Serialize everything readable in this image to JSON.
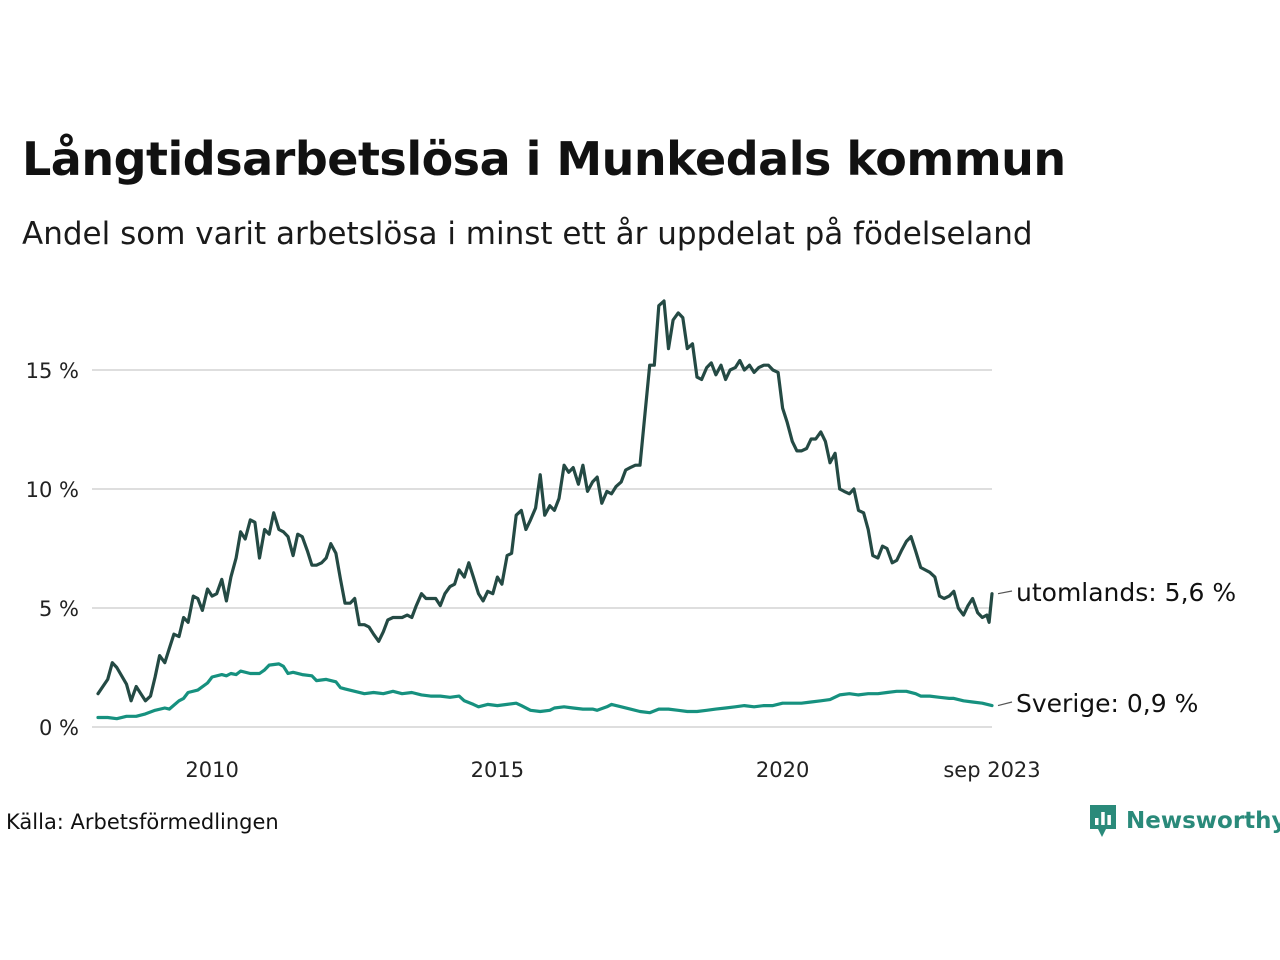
{
  "title": "Långtidsarbetslösa i Munkedals kommun",
  "subtitle": "Andel som varit arbetslösa i minst ett år uppdelat på födelseland",
  "source": "Källa: Arbetsförmedlingen",
  "brand": "Newsworthy",
  "colors": {
    "utomlands": "#244a44",
    "sverige": "#16917f",
    "grid": "#dedede",
    "brand": "#2a8a7a"
  },
  "chart_data": {
    "type": "line",
    "title": "Långtidsarbetslösa i Munkedals kommun",
    "xlabel": "",
    "ylabel": "",
    "ylim": [
      0,
      18
    ],
    "xlim": [
      2008.0,
      2023.67
    ],
    "y_ticks": [
      {
        "value": 0,
        "label": "0 %"
      },
      {
        "value": 5,
        "label": "5 %"
      },
      {
        "value": 10,
        "label": "10 %"
      },
      {
        "value": 15,
        "label": "15 %"
      }
    ],
    "x_ticks": [
      {
        "value": 2010,
        "label": "2010"
      },
      {
        "value": 2015,
        "label": "2015"
      },
      {
        "value": 2020,
        "label": "2020"
      },
      {
        "value": 2023.67,
        "label": "sep 2023"
      }
    ],
    "series": [
      {
        "name": "utomlands",
        "end_label": "utomlands: 5,6 %",
        "color_key": "utomlands",
        "points": [
          [
            2008.0,
            1.4
          ],
          [
            2008.17,
            2.0
          ],
          [
            2008.25,
            2.7
          ],
          [
            2008.33,
            2.5
          ],
          [
            2008.5,
            1.8
          ],
          [
            2008.58,
            1.1
          ],
          [
            2008.67,
            1.7
          ],
          [
            2008.75,
            1.4
          ],
          [
            2008.83,
            1.1
          ],
          [
            2008.92,
            1.3
          ],
          [
            2009.0,
            2.1
          ],
          [
            2009.08,
            3.0
          ],
          [
            2009.17,
            2.7
          ],
          [
            2009.25,
            3.3
          ],
          [
            2009.33,
            3.9
          ],
          [
            2009.42,
            3.8
          ],
          [
            2009.5,
            4.6
          ],
          [
            2009.58,
            4.4
          ],
          [
            2009.67,
            5.5
          ],
          [
            2009.75,
            5.4
          ],
          [
            2009.83,
            4.9
          ],
          [
            2009.92,
            5.8
          ],
          [
            2010.0,
            5.5
          ],
          [
            2010.08,
            5.6
          ],
          [
            2010.17,
            6.2
          ],
          [
            2010.25,
            5.3
          ],
          [
            2010.33,
            6.3
          ],
          [
            2010.42,
            7.1
          ],
          [
            2010.5,
            8.2
          ],
          [
            2010.58,
            7.9
          ],
          [
            2010.67,
            8.7
          ],
          [
            2010.75,
            8.6
          ],
          [
            2010.83,
            7.1
          ],
          [
            2010.92,
            8.3
          ],
          [
            2011.0,
            8.1
          ],
          [
            2011.08,
            9.0
          ],
          [
            2011.17,
            8.3
          ],
          [
            2011.25,
            8.2
          ],
          [
            2011.33,
            8.0
          ],
          [
            2011.42,
            7.2
          ],
          [
            2011.5,
            8.1
          ],
          [
            2011.58,
            8.0
          ],
          [
            2011.67,
            7.4
          ],
          [
            2011.75,
            6.8
          ],
          [
            2011.83,
            6.8
          ],
          [
            2011.92,
            6.9
          ],
          [
            2012.0,
            7.1
          ],
          [
            2012.08,
            7.7
          ],
          [
            2012.17,
            7.3
          ],
          [
            2012.25,
            6.2
          ],
          [
            2012.33,
            5.2
          ],
          [
            2012.42,
            5.2
          ],
          [
            2012.5,
            5.4
          ],
          [
            2012.58,
            4.3
          ],
          [
            2012.67,
            4.3
          ],
          [
            2012.75,
            4.2
          ],
          [
            2012.83,
            3.9
          ],
          [
            2012.92,
            3.6
          ],
          [
            2013.0,
            4.0
          ],
          [
            2013.08,
            4.5
          ],
          [
            2013.17,
            4.6
          ],
          [
            2013.25,
            4.6
          ],
          [
            2013.33,
            4.6
          ],
          [
            2013.42,
            4.7
          ],
          [
            2013.5,
            4.6
          ],
          [
            2013.58,
            5.1
          ],
          [
            2013.67,
            5.6
          ],
          [
            2013.75,
            5.4
          ],
          [
            2013.83,
            5.4
          ],
          [
            2013.92,
            5.4
          ],
          [
            2014.0,
            5.1
          ],
          [
            2014.08,
            5.6
          ],
          [
            2014.17,
            5.9
          ],
          [
            2014.25,
            6.0
          ],
          [
            2014.33,
            6.6
          ],
          [
            2014.42,
            6.3
          ],
          [
            2014.5,
            6.9
          ],
          [
            2014.58,
            6.3
          ],
          [
            2014.67,
            5.6
          ],
          [
            2014.75,
            5.3
          ],
          [
            2014.83,
            5.7
          ],
          [
            2014.92,
            5.6
          ],
          [
            2015.0,
            6.3
          ],
          [
            2015.08,
            6.0
          ],
          [
            2015.17,
            7.2
          ],
          [
            2015.25,
            7.3
          ],
          [
            2015.33,
            8.9
          ],
          [
            2015.42,
            9.1
          ],
          [
            2015.5,
            8.3
          ],
          [
            2015.58,
            8.7
          ],
          [
            2015.67,
            9.2
          ],
          [
            2015.75,
            10.6
          ],
          [
            2015.83,
            8.9
          ],
          [
            2015.92,
            9.3
          ],
          [
            2016.0,
            9.1
          ],
          [
            2016.08,
            9.6
          ],
          [
            2016.17,
            11.0
          ],
          [
            2016.25,
            10.7
          ],
          [
            2016.33,
            10.9
          ],
          [
            2016.42,
            10.2
          ],
          [
            2016.5,
            11.0
          ],
          [
            2016.58,
            9.9
          ],
          [
            2016.67,
            10.3
          ],
          [
            2016.75,
            10.5
          ],
          [
            2016.83,
            9.4
          ],
          [
            2016.92,
            9.9
          ],
          [
            2017.0,
            9.8
          ],
          [
            2017.08,
            10.1
          ],
          [
            2017.17,
            10.3
          ],
          [
            2017.25,
            10.8
          ],
          [
            2017.33,
            10.9
          ],
          [
            2017.42,
            11.0
          ],
          [
            2017.5,
            11.0
          ],
          [
            2017.58,
            13.0
          ],
          [
            2017.67,
            15.2
          ],
          [
            2017.75,
            15.2
          ],
          [
            2017.83,
            17.7
          ],
          [
            2017.92,
            17.9
          ],
          [
            2018.0,
            15.9
          ],
          [
            2018.08,
            17.1
          ],
          [
            2018.17,
            17.4
          ],
          [
            2018.25,
            17.2
          ],
          [
            2018.33,
            15.9
          ],
          [
            2018.42,
            16.1
          ],
          [
            2018.5,
            14.7
          ],
          [
            2018.58,
            14.6
          ],
          [
            2018.67,
            15.1
          ],
          [
            2018.75,
            15.3
          ],
          [
            2018.83,
            14.8
          ],
          [
            2018.92,
            15.2
          ],
          [
            2019.0,
            14.6
          ],
          [
            2019.08,
            15.0
          ],
          [
            2019.17,
            15.1
          ],
          [
            2019.25,
            15.4
          ],
          [
            2019.33,
            15.0
          ],
          [
            2019.42,
            15.2
          ],
          [
            2019.5,
            14.9
          ],
          [
            2019.58,
            15.1
          ],
          [
            2019.67,
            15.2
          ],
          [
            2019.75,
            15.2
          ],
          [
            2019.83,
            15.0
          ],
          [
            2019.92,
            14.9
          ],
          [
            2020.0,
            13.4
          ],
          [
            2020.08,
            12.8
          ],
          [
            2020.17,
            12.0
          ],
          [
            2020.25,
            11.6
          ],
          [
            2020.33,
            11.6
          ],
          [
            2020.42,
            11.7
          ],
          [
            2020.5,
            12.1
          ],
          [
            2020.58,
            12.1
          ],
          [
            2020.67,
            12.4
          ],
          [
            2020.75,
            12.0
          ],
          [
            2020.83,
            11.1
          ],
          [
            2020.92,
            11.5
          ],
          [
            2021.0,
            10.0
          ],
          [
            2021.08,
            9.9
          ],
          [
            2021.17,
            9.8
          ],
          [
            2021.25,
            10.0
          ],
          [
            2021.33,
            9.1
          ],
          [
            2021.42,
            9.0
          ],
          [
            2021.5,
            8.3
          ],
          [
            2021.58,
            7.2
          ],
          [
            2021.67,
            7.1
          ],
          [
            2021.75,
            7.6
          ],
          [
            2021.83,
            7.5
          ],
          [
            2021.92,
            6.9
          ],
          [
            2022.0,
            7.0
          ],
          [
            2022.08,
            7.4
          ],
          [
            2022.17,
            7.8
          ],
          [
            2022.25,
            8.0
          ],
          [
            2022.33,
            7.4
          ],
          [
            2022.42,
            6.7
          ],
          [
            2022.5,
            6.6
          ],
          [
            2022.58,
            6.5
          ],
          [
            2022.67,
            6.3
          ],
          [
            2022.75,
            5.5
          ],
          [
            2022.83,
            5.4
          ],
          [
            2022.92,
            5.5
          ],
          [
            2023.0,
            5.7
          ],
          [
            2023.08,
            5.0
          ],
          [
            2023.17,
            4.7
          ],
          [
            2023.25,
            5.1
          ],
          [
            2023.33,
            5.4
          ],
          [
            2023.42,
            4.8
          ],
          [
            2023.5,
            4.6
          ],
          [
            2023.58,
            4.7
          ],
          [
            2023.62,
            4.4
          ],
          [
            2023.67,
            5.6
          ]
        ]
      },
      {
        "name": "Sverige",
        "end_label": "Sverige: 0,9 %",
        "color_key": "sverige",
        "points": [
          [
            2008.0,
            0.4
          ],
          [
            2008.17,
            0.4
          ],
          [
            2008.33,
            0.35
          ],
          [
            2008.5,
            0.45
          ],
          [
            2008.67,
            0.45
          ],
          [
            2008.83,
            0.55
          ],
          [
            2009.0,
            0.7
          ],
          [
            2009.17,
            0.8
          ],
          [
            2009.25,
            0.75
          ],
          [
            2009.42,
            1.1
          ],
          [
            2009.5,
            1.2
          ],
          [
            2009.58,
            1.45
          ],
          [
            2009.75,
            1.55
          ],
          [
            2009.92,
            1.85
          ],
          [
            2010.0,
            2.1
          ],
          [
            2010.17,
            2.2
          ],
          [
            2010.25,
            2.15
          ],
          [
            2010.33,
            2.25
          ],
          [
            2010.42,
            2.2
          ],
          [
            2010.5,
            2.35
          ],
          [
            2010.67,
            2.25
          ],
          [
            2010.83,
            2.25
          ],
          [
            2010.92,
            2.4
          ],
          [
            2011.0,
            2.6
          ],
          [
            2011.17,
            2.65
          ],
          [
            2011.25,
            2.55
          ],
          [
            2011.33,
            2.25
          ],
          [
            2011.42,
            2.3
          ],
          [
            2011.58,
            2.2
          ],
          [
            2011.75,
            2.15
          ],
          [
            2011.83,
            1.95
          ],
          [
            2012.0,
            2.0
          ],
          [
            2012.17,
            1.9
          ],
          [
            2012.25,
            1.65
          ],
          [
            2012.33,
            1.6
          ],
          [
            2012.5,
            1.5
          ],
          [
            2012.67,
            1.4
          ],
          [
            2012.83,
            1.45
          ],
          [
            2013.0,
            1.4
          ],
          [
            2013.17,
            1.5
          ],
          [
            2013.33,
            1.4
          ],
          [
            2013.5,
            1.45
          ],
          [
            2013.67,
            1.35
          ],
          [
            2013.83,
            1.3
          ],
          [
            2014.0,
            1.3
          ],
          [
            2014.17,
            1.25
          ],
          [
            2014.33,
            1.3
          ],
          [
            2014.42,
            1.1
          ],
          [
            2014.58,
            0.95
          ],
          [
            2014.67,
            0.85
          ],
          [
            2014.83,
            0.95
          ],
          [
            2015.0,
            0.9
          ],
          [
            2015.17,
            0.95
          ],
          [
            2015.33,
            1.0
          ],
          [
            2015.42,
            0.9
          ],
          [
            2015.58,
            0.7
          ],
          [
            2015.75,
            0.65
          ],
          [
            2015.92,
            0.7
          ],
          [
            2016.0,
            0.8
          ],
          [
            2016.17,
            0.85
          ],
          [
            2016.33,
            0.8
          ],
          [
            2016.5,
            0.75
          ],
          [
            2016.67,
            0.75
          ],
          [
            2016.75,
            0.7
          ],
          [
            2016.92,
            0.85
          ],
          [
            2017.0,
            0.95
          ],
          [
            2017.17,
            0.85
          ],
          [
            2017.33,
            0.75
          ],
          [
            2017.5,
            0.65
          ],
          [
            2017.67,
            0.6
          ],
          [
            2017.83,
            0.75
          ],
          [
            2018.0,
            0.75
          ],
          [
            2018.17,
            0.7
          ],
          [
            2018.33,
            0.65
          ],
          [
            2018.5,
            0.65
          ],
          [
            2018.67,
            0.7
          ],
          [
            2018.83,
            0.75
          ],
          [
            2019.0,
            0.8
          ],
          [
            2019.17,
            0.85
          ],
          [
            2019.33,
            0.9
          ],
          [
            2019.5,
            0.85
          ],
          [
            2019.67,
            0.9
          ],
          [
            2019.83,
            0.9
          ],
          [
            2020.0,
            1.0
          ],
          [
            2020.17,
            1.0
          ],
          [
            2020.33,
            1.0
          ],
          [
            2020.5,
            1.05
          ],
          [
            2020.67,
            1.1
          ],
          [
            2020.83,
            1.15
          ],
          [
            2021.0,
            1.35
          ],
          [
            2021.17,
            1.4
          ],
          [
            2021.33,
            1.35
          ],
          [
            2021.5,
            1.4
          ],
          [
            2021.67,
            1.4
          ],
          [
            2021.83,
            1.45
          ],
          [
            2022.0,
            1.5
          ],
          [
            2022.17,
            1.5
          ],
          [
            2022.33,
            1.4
          ],
          [
            2022.42,
            1.3
          ],
          [
            2022.58,
            1.3
          ],
          [
            2022.75,
            1.25
          ],
          [
            2022.92,
            1.2
          ],
          [
            2023.0,
            1.2
          ],
          [
            2023.17,
            1.1
          ],
          [
            2023.33,
            1.05
          ],
          [
            2023.5,
            1.0
          ],
          [
            2023.67,
            0.9
          ]
        ]
      }
    ]
  }
}
